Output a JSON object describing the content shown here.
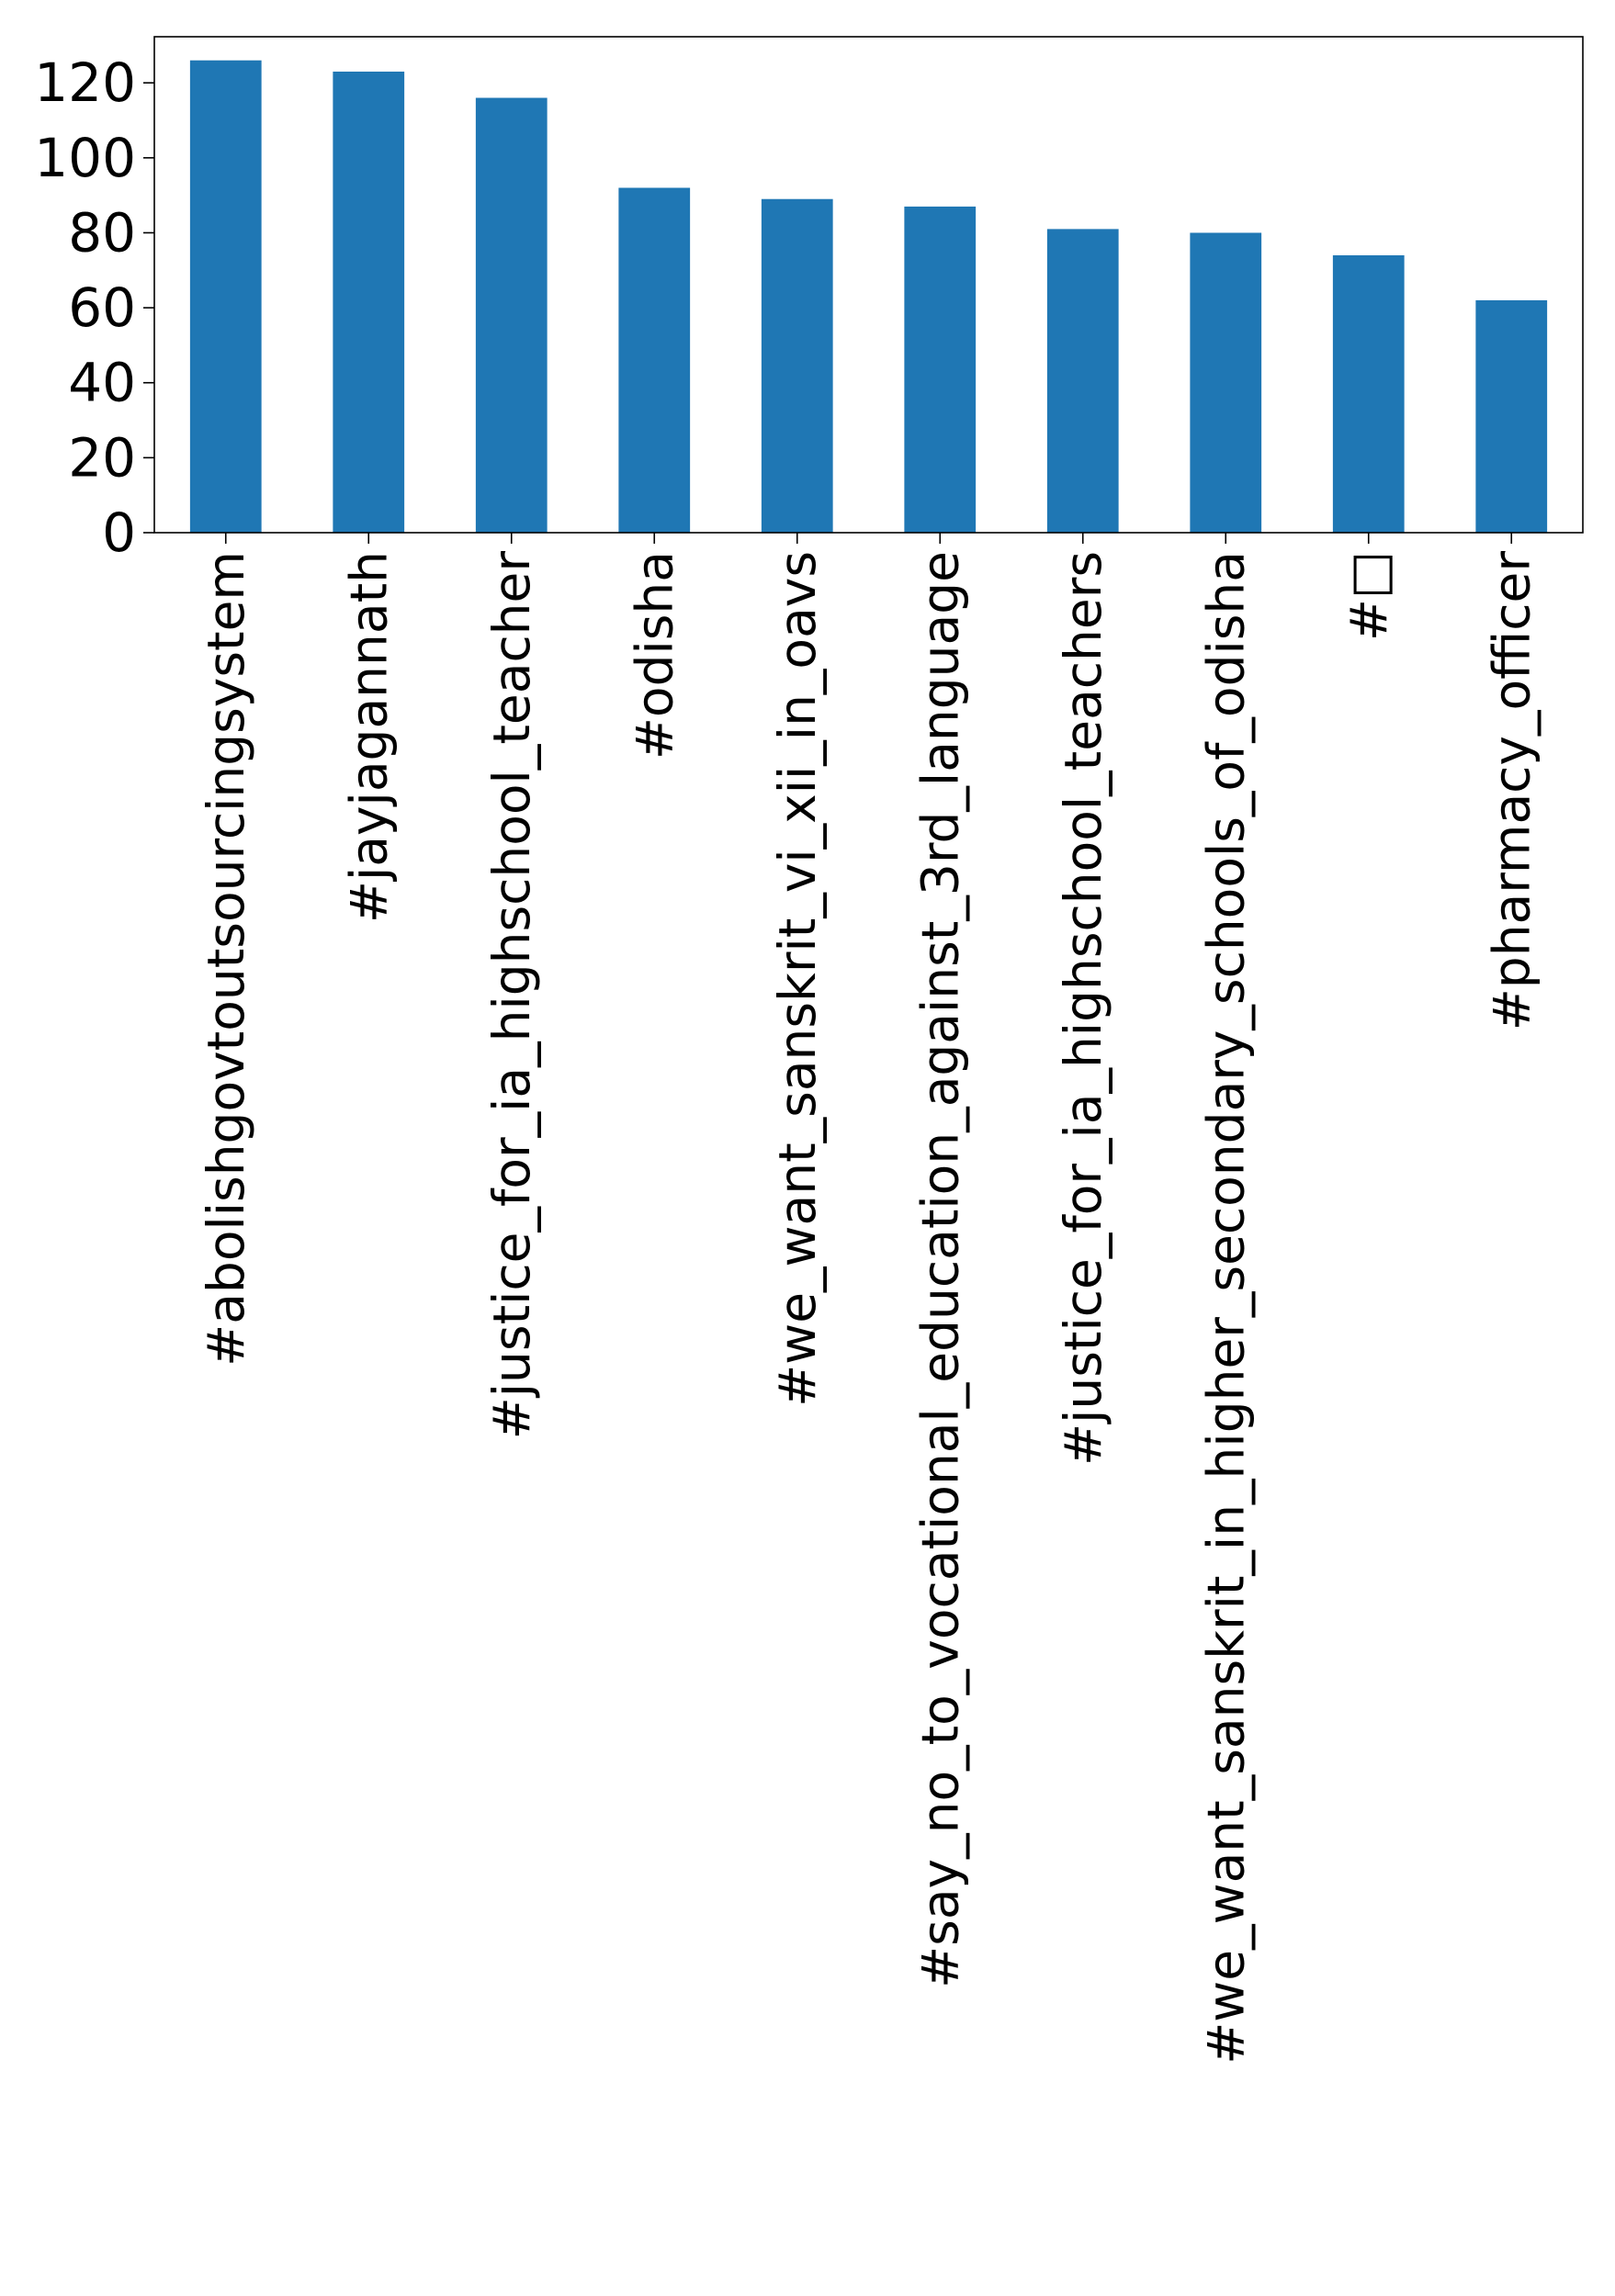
{
  "chart_data": {
    "type": "bar",
    "title": "",
    "xlabel": "",
    "ylabel": "",
    "categories": [
      "#abolishgovtoutsourcingsystem",
      "#jayjagannath",
      "#justice_for_ia_highschool_teacher",
      "#odisha",
      "#we_want_sanskrit_vi_xii_in_oavs",
      "#say_no_to_vocational_education_against_3rd_language",
      "#justice_for_ia_highschool_teachers",
      "#we_want_sanskrit_in_higher_secondary_schools_of_odisha",
      "#□",
      "#pharmacy_officer"
    ],
    "values": [
      126,
      123,
      116,
      92,
      89,
      87,
      81,
      80,
      74,
      62
    ],
    "ylim": [
      0,
      132.3
    ],
    "yticks": [
      0,
      20,
      40,
      60,
      80,
      100,
      120
    ],
    "ytick_labels": [
      "0",
      "20",
      "40",
      "60",
      "80",
      "100",
      "120"
    ],
    "grid": false,
    "legend": "none",
    "bar_color": "#1f77b4"
  }
}
